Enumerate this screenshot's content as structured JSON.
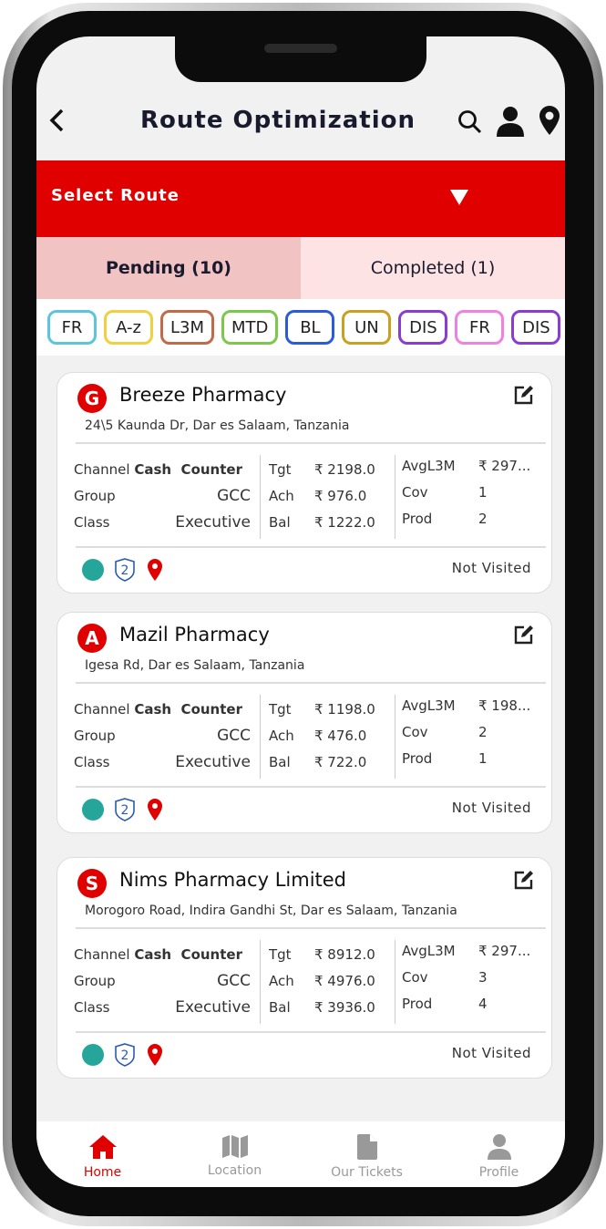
{
  "header": {
    "title": "Route Optimization",
    "back_icon": "chevron-left-icon",
    "icons": [
      "search-icon",
      "user-icon",
      "location-pin-icon"
    ]
  },
  "route_select": {
    "label": "Select Route"
  },
  "tabs": [
    {
      "label": "Pending (10)",
      "active": true
    },
    {
      "label": "Completed (1)",
      "active": false
    }
  ],
  "filters": [
    {
      "label": "FR",
      "color": "#5bc5dc"
    },
    {
      "label": "A-z",
      "color": "#f0d040"
    },
    {
      "label": "L3M",
      "color": "#c06a4a"
    },
    {
      "label": "MTD",
      "color": "#7cc84a"
    },
    {
      "label": "BL",
      "color": "#2a5bd8"
    },
    {
      "label": "UN",
      "color": "#c9a020"
    },
    {
      "label": "DIS",
      "color": "#8a3ccf"
    },
    {
      "label": "FR",
      "color": "#ee82e0"
    },
    {
      "label": "DIS",
      "color": "#8a3ccf"
    }
  ],
  "labels": {
    "channel": "Channel",
    "group": "Group",
    "class": "Class",
    "tgt": "Tgt",
    "ach": "Ach",
    "bal": "Bal",
    "avg": "AvgL3M",
    "cov": "Cov",
    "prod": "Prod"
  },
  "cards": [
    {
      "initial": "G",
      "name": "Breeze Pharmacy",
      "address": "24\\5 Kaunda Dr, Dar es Salaam, Tanzania",
      "channel": "Cash  Counter",
      "group": "GCC",
      "class": "Executive",
      "tgt": "₹ 2198.0",
      "ach": "₹ 976.0",
      "bal": "₹ 1222.0",
      "avg": "₹ 297...",
      "cov": "1",
      "prod": "2",
      "shield": "2",
      "status": "Not Visited"
    },
    {
      "initial": "A",
      "name": "Mazil Pharmacy",
      "address": "Igesa Rd, Dar es Salaam, Tanzania",
      "channel": "Cash  Counter",
      "group": "GCC",
      "class": "Executive",
      "tgt": "₹ 1198.0",
      "ach": "₹ 476.0",
      "bal": "₹ 722.0",
      "avg": "₹ 198...",
      "cov": "2",
      "prod": "1",
      "shield": "2",
      "status": "Not Visited"
    },
    {
      "initial": "S",
      "name": "Nims Pharmacy Limited",
      "address": "Morogoro Road, Indira Gandhi St, Dar es Salaam, Tanzania",
      "channel": "Cash  Counter",
      "group": "GCC",
      "class": "Executive",
      "tgt": "₹ 8912.0",
      "ach": "₹ 4976.0",
      "bal": "₹ 3936.0",
      "avg": "₹ 297...",
      "cov": "3",
      "prod": "4",
      "shield": "2",
      "status": "Not Visited"
    }
  ],
  "colors": {
    "accent": "#e00000",
    "status_dot": "#26a69a"
  },
  "nav": [
    {
      "label": "Home",
      "icon": "home-icon",
      "active": true
    },
    {
      "label": "Location",
      "icon": "map-icon",
      "active": false
    },
    {
      "label": "Our Tickets",
      "icon": "document-icon",
      "active": false
    },
    {
      "label": "Profile",
      "icon": "user-icon",
      "active": false
    }
  ]
}
